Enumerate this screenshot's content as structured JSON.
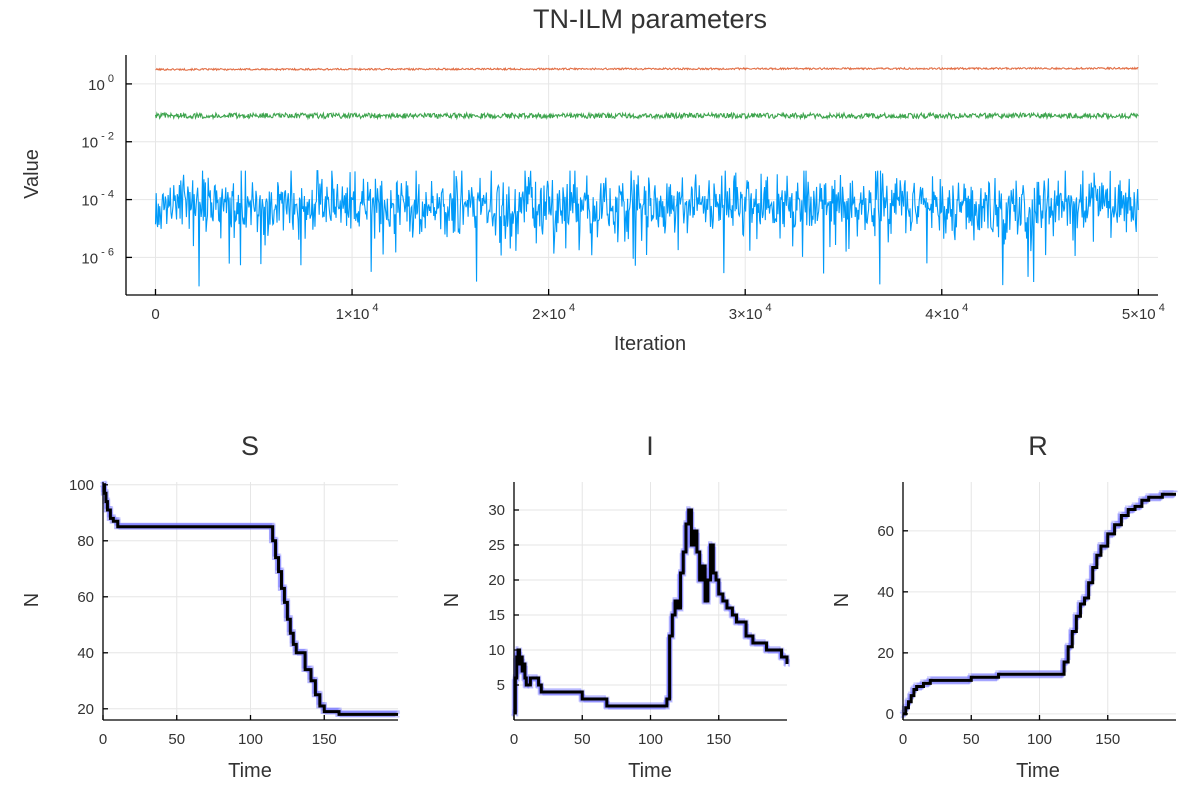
{
  "chart_data": [
    {
      "type": "line",
      "title": "TN-ILM parameters",
      "xlabel": "Iteration",
      "ylabel": "Value",
      "yscale": "log10",
      "xlim": [
        -1500,
        51000
      ],
      "ylim_exp": [
        -7.3,
        1.0
      ],
      "x_ticks": [
        0,
        10000,
        20000,
        30000,
        40000,
        50000
      ],
      "x_tick_labels": [
        {
          "base": "0",
          "exp": ""
        },
        {
          "base": "1×10",
          "exp": "4"
        },
        {
          "base": "2×10",
          "exp": "4"
        },
        {
          "base": "3×10",
          "exp": "4"
        },
        {
          "base": "4×10",
          "exp": "4"
        },
        {
          "base": "5×10",
          "exp": "4"
        }
      ],
      "y_tick_exps": [
        0,
        -2,
        -4,
        -6
      ],
      "y_tick_labels": [
        {
          "base": "10",
          "exp": "0"
        },
        {
          "base": "10",
          "exp": "- 2"
        },
        {
          "base": "10",
          "exp": "- 4"
        },
        {
          "base": "10",
          "exp": "- 6"
        }
      ],
      "grid": true,
      "legend": "none",
      "series": [
        {
          "color": "#e26f46",
          "x_range": [
            0,
            50000
          ],
          "log10_center": 0.5,
          "log10_spread": 0.03,
          "log10_drift": 0.04
        },
        {
          "color": "#3da44d",
          "x_range": [
            0,
            50000
          ],
          "log10_center": -1.1,
          "log10_spread": 0.09,
          "log10_drift": 0.0
        },
        {
          "color": "#009af9",
          "x_range": [
            0,
            50000
          ],
          "log10_center": -4.2,
          "log10_spread": 0.55,
          "log10_min": -7.0,
          "log10_max": -3.0
        }
      ]
    },
    {
      "type": "line",
      "title": "S",
      "xlabel": "Time",
      "ylabel": "N",
      "xlim": [
        0,
        200
      ],
      "ylim": [
        16,
        101
      ],
      "x_ticks": [
        0,
        50,
        100,
        150
      ],
      "x_tick_labels": [
        "0",
        "50",
        "100",
        "150"
      ],
      "y_ticks": [
        20,
        40,
        60,
        80,
        100
      ],
      "y_tick_labels": [
        "20",
        "40",
        "60",
        "80",
        "100"
      ],
      "grid": true,
      "legend": "none",
      "band_color": "#7777ff",
      "line_color": "#000000",
      "line": {
        "x": [
          0,
          1,
          2,
          3,
          5,
          7,
          10,
          113,
          115,
          117,
          119,
          121,
          123,
          125,
          127,
          129,
          131,
          134,
          137,
          141,
          144,
          147,
          150,
          155,
          160,
          200
        ],
        "y": [
          100,
          97,
          94,
          91,
          88,
          87,
          85,
          85,
          80,
          74,
          69,
          63,
          58,
          52,
          47,
          43,
          40,
          40,
          34,
          30,
          25,
          21,
          19,
          19,
          18,
          18
        ]
      }
    },
    {
      "type": "line",
      "title": "I",
      "xlabel": "Time",
      "ylabel": "N",
      "xlim": [
        0,
        200
      ],
      "ylim": [
        0,
        34
      ],
      "x_ticks": [
        0,
        50,
        100,
        150
      ],
      "x_tick_labels": [
        "0",
        "50",
        "100",
        "150"
      ],
      "y_ticks": [
        5,
        10,
        15,
        20,
        25,
        30
      ],
      "y_tick_labels": [
        "5",
        "10",
        "15",
        "20",
        "25",
        "30"
      ],
      "grid": true,
      "legend": "none",
      "band_color": "#7777ff",
      "line_color": "#000000",
      "line": {
        "x": [
          0,
          1,
          2,
          3,
          4,
          5,
          6,
          7,
          8,
          9,
          10,
          12,
          15,
          18,
          20,
          25,
          30,
          35,
          40,
          47,
          50,
          55,
          60,
          65,
          68,
          75,
          80,
          90,
          100,
          105,
          110,
          112,
          114,
          116,
          118,
          120,
          122,
          124,
          126,
          128,
          130,
          132,
          134,
          136,
          138,
          140,
          142,
          144,
          146,
          148,
          150,
          153,
          156,
          160,
          163,
          166,
          170,
          175,
          180,
          185,
          190,
          196,
          200
        ],
        "y": [
          1,
          6,
          9,
          10,
          8,
          9,
          7,
          8,
          6,
          5,
          5,
          6,
          6,
          5,
          4,
          4,
          4,
          4,
          4,
          4,
          3,
          3,
          3,
          3,
          2,
          2,
          2,
          2,
          2,
          2,
          2,
          3,
          12,
          15,
          17,
          16,
          21,
          24,
          28,
          30,
          25,
          27,
          24,
          20,
          22,
          17,
          20,
          25,
          21,
          20,
          18,
          17,
          16,
          15,
          14,
          14,
          12,
          11,
          11,
          10,
          10,
          9,
          8
        ]
      }
    },
    {
      "type": "line",
      "title": "R",
      "xlabel": "Time",
      "ylabel": "N",
      "xlim": [
        0,
        200
      ],
      "ylim": [
        -2,
        76
      ],
      "x_ticks": [
        0,
        50,
        100,
        150
      ],
      "x_tick_labels": [
        "0",
        "50",
        "100",
        "150"
      ],
      "y_ticks": [
        0,
        20,
        40,
        60
      ],
      "y_tick_labels": [
        "0",
        "20",
        "40",
        "60"
      ],
      "grid": true,
      "legend": "none",
      "band_color": "#7777ff",
      "line_color": "#000000",
      "line": {
        "x": [
          0,
          2,
          4,
          6,
          8,
          10,
          15,
          20,
          30,
          40,
          50,
          60,
          70,
          80,
          90,
          100,
          110,
          115,
          118,
          121,
          124,
          127,
          130,
          133,
          136,
          139,
          142,
          145,
          150,
          155,
          160,
          165,
          170,
          175,
          180,
          185,
          190,
          195,
          200
        ],
        "y": [
          0,
          2,
          4,
          6,
          8,
          9,
          10,
          11,
          11,
          11,
          12,
          12,
          13,
          13,
          13,
          13,
          13,
          13,
          17,
          22,
          27,
          32,
          36,
          38,
          43,
          48,
          52,
          55,
          59,
          62,
          65,
          67,
          68,
          70,
          71,
          71,
          72,
          72,
          72
        ]
      }
    }
  ]
}
